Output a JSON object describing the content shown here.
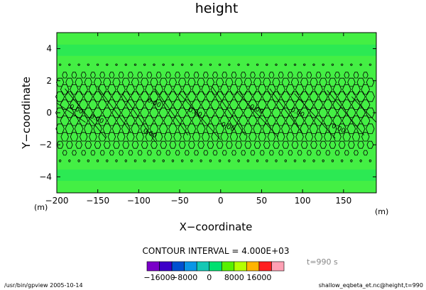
{
  "chart_data": {
    "type": "heatmap",
    "title": "height",
    "xlabel": "X−coordinate",
    "ylabel": "Y−coordinate",
    "x_unit": "(m)",
    "y_unit": "(m)",
    "xlim": [
      -200,
      190
    ],
    "ylim": [
      -5,
      5
    ],
    "x_ticks": [
      -200,
      -150,
      -100,
      -50,
      0,
      50,
      100,
      150
    ],
    "x_tick_labels": [
      "−200",
      "−150",
      "−100",
      "−50",
      "0",
      "50",
      "100",
      "150"
    ],
    "y_ticks": [
      -4,
      -2,
      0,
      2,
      4
    ],
    "y_tick_labels": [
      "−4",
      "−2",
      "0",
      "2",
      "4"
    ],
    "contour_interval_text": "CONTOUR INTERVAL = 4.000E+03",
    "time_text": "t=990 s",
    "contour_labels": [
      {
        "x": -185,
        "y": 0.3,
        "text": "0.00"
      },
      {
        "x": -160,
        "y": -0.3,
        "text": "0.00"
      },
      {
        "x": -90,
        "y": 0.7,
        "text": "0.00"
      },
      {
        "x": -95,
        "y": -1.2,
        "text": "0.00"
      },
      {
        "x": -40,
        "y": 0.1,
        "text": "0.00"
      },
      {
        "x": 0,
        "y": -0.8,
        "text": "0.00"
      },
      {
        "x": 35,
        "y": 0.3,
        "text": "0.00"
      },
      {
        "x": 85,
        "y": 0.1,
        "text": "0.00"
      },
      {
        "x": 135,
        "y": -0.9,
        "text": "0.00"
      }
    ],
    "colorbar": {
      "colors": [
        "#7a00c8",
        "#3c00c8",
        "#0050d0",
        "#0a96e6",
        "#14c8b4",
        "#00e070",
        "#58f000",
        "#b4ff00",
        "#ffb400",
        "#ff2020",
        "#ffa0b4"
      ],
      "labels": [
        "−16000",
        "−8000",
        "0",
        "8000",
        "16000"
      ],
      "label_values": [
        -16000,
        -8000,
        0,
        8000,
        16000
      ],
      "min": -20000,
      "max": 24000
    },
    "field_color": "#44ef44",
    "band_color": "#00e070",
    "contour_color": "#000000",
    "grid": false
  },
  "footer": {
    "left": "/usr/bin/gpview  2005-10-14",
    "right": "shallow_eqbeta_et.nc@height,t=990"
  }
}
